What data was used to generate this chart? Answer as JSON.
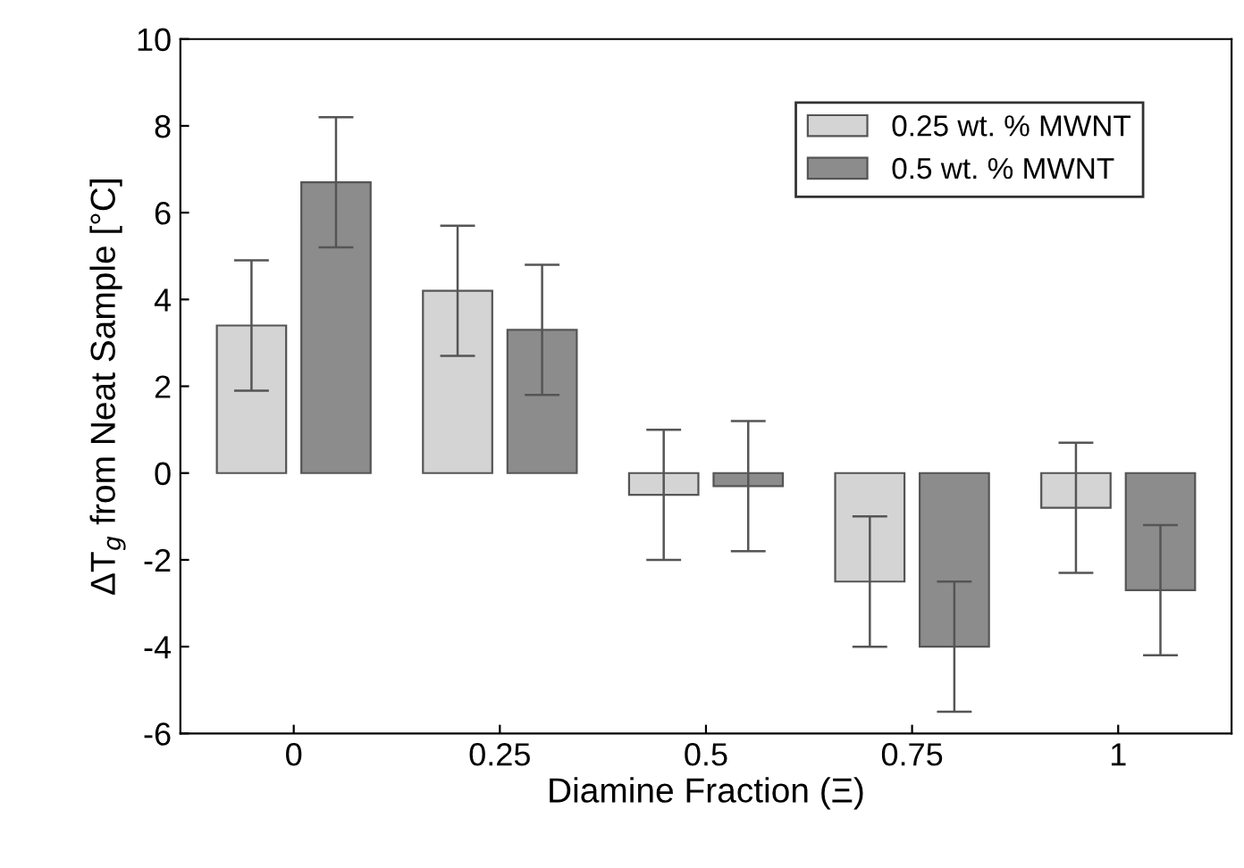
{
  "chart_data": {
    "type": "bar",
    "xlabel": "Diamine Fraction (Ξ)",
    "ylabel": "ΔT$_{g}$ from Neat Sample [°C]",
    "categories": [
      "0",
      "0.25",
      "0.5",
      "0.75",
      "1"
    ],
    "series": [
      {
        "name": "0.25 wt. % MWNT",
        "color": "#d4d4d4",
        "values": [
          3.4,
          4.2,
          -0.5,
          -2.5,
          -0.8
        ],
        "errors": [
          1.5,
          1.5,
          1.5,
          1.5,
          1.5
        ]
      },
      {
        "name": "0.5 wt. % MWNT",
        "color": "#8c8c8c",
        "values": [
          6.7,
          3.3,
          -0.3,
          -4.0,
          -2.7
        ],
        "errors": [
          1.5,
          1.5,
          1.5,
          1.5,
          1.5
        ]
      }
    ],
    "ylim": [
      -6,
      10
    ],
    "yticks": [
      -6,
      -4,
      -2,
      0,
      2,
      4,
      6,
      8,
      10
    ],
    "grid": false,
    "legend": "top right"
  }
}
